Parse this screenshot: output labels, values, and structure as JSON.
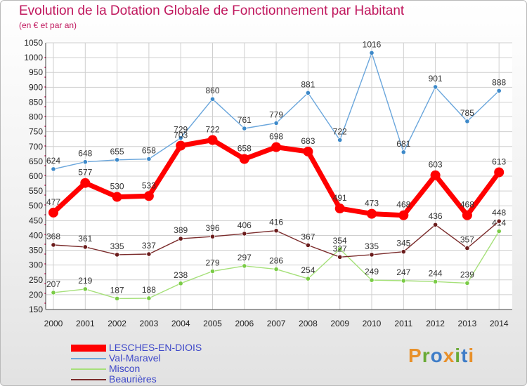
{
  "title": "Evolution de la Dotation Globale de Fonctionnement par Habitant",
  "subtitle": "(en € et par an)",
  "brand": "Proxiti",
  "brand_colors": [
    "#e8902a",
    "#6aaa35",
    "#3f7dc8",
    "#e8902a",
    "#6aaa35",
    "#3f7dc8",
    "#e8902a"
  ],
  "colors": {
    "title": "#c0175d",
    "legend_text": "#3e48c9"
  },
  "chart_data": {
    "type": "line",
    "title": "Evolution de la Dotation Globale de Fonctionnement par Habitant",
    "subtitle": "(en € et par an)",
    "xlabel": "",
    "ylabel": "",
    "x": [
      2000,
      2001,
      2002,
      2003,
      2004,
      2005,
      2006,
      2007,
      2008,
      2009,
      2010,
      2011,
      2012,
      2013,
      2014
    ],
    "x_tick_labels": [
      "2000",
      "2001",
      "2002",
      "2003",
      "2004",
      "2005",
      "2006",
      "2007",
      "2008",
      "2009",
      "2010",
      "2011",
      "2012",
      "2013",
      "2014"
    ],
    "ylim": [
      150,
      1050
    ],
    "y_ticks": [
      150,
      200,
      250,
      300,
      350,
      400,
      450,
      500,
      550,
      600,
      650,
      700,
      750,
      800,
      850,
      900,
      950,
      1000,
      1050
    ],
    "grid": true,
    "legend_position": "bottom-left",
    "series": [
      {
        "name": "LESCHES-EN-DIOIS",
        "color": "#ff0000",
        "marker_color": "#ff0000",
        "emphasis": true,
        "values": [
          477,
          577,
          530,
          533,
          703,
          722,
          658,
          698,
          683,
          491,
          473,
          468,
          603,
          468,
          613
        ]
      },
      {
        "name": "Val-Maravel",
        "color": "#6aa6dc",
        "marker_color": "#3d89c9",
        "emphasis": false,
        "values": [
          624,
          648,
          655,
          658,
          729,
          860,
          761,
          779,
          881,
          722,
          1016,
          681,
          901,
          785,
          888
        ]
      },
      {
        "name": "Miscon",
        "color": "#a6e07a",
        "marker_color": "#7acb46",
        "emphasis": false,
        "values": [
          207,
          219,
          187,
          188,
          238,
          279,
          297,
          286,
          254,
          354,
          249,
          247,
          244,
          239,
          414
        ]
      },
      {
        "name": "Beaurières",
        "color": "#7a2b2b",
        "marker_color": "#6b1c1c",
        "emphasis": false,
        "values": [
          368,
          361,
          335,
          337,
          389,
          396,
          406,
          416,
          367,
          327,
          335,
          345,
          436,
          357,
          448
        ]
      }
    ]
  }
}
